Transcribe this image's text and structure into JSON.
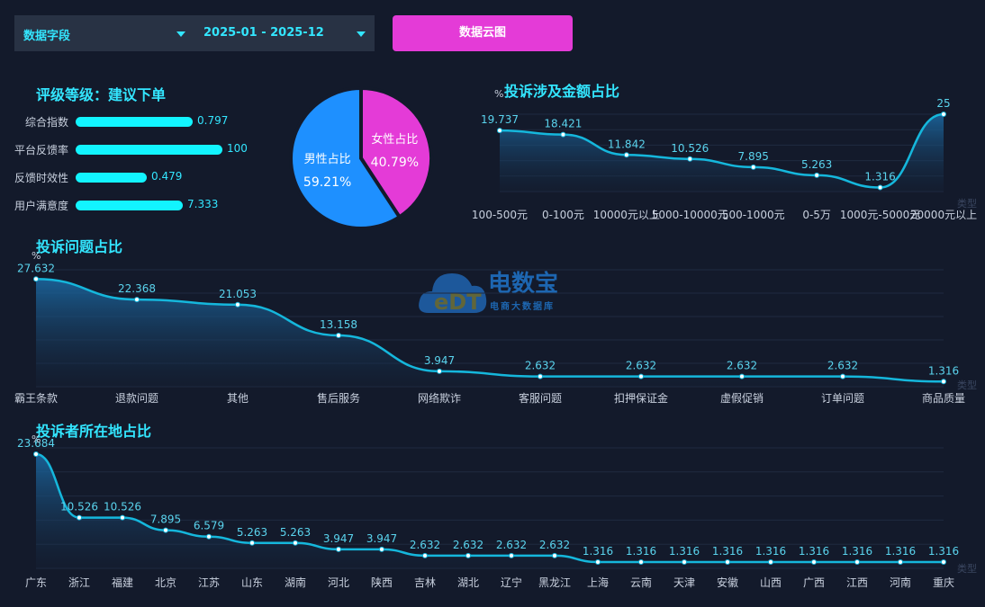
{
  "toolbar": {
    "field_select": "数据字段",
    "date_range": "2025-01 - 2025-12",
    "cloud_button": "数据云图"
  },
  "rating": {
    "title": "评级等级：建议下单",
    "items": [
      {
        "label": "综合指数",
        "value": "0.797",
        "fill": 0.59
      },
      {
        "label": "平台反馈率",
        "value": "100",
        "fill": 0.74
      },
      {
        "label": "反馈时效性",
        "value": "0.479",
        "fill": 0.36
      },
      {
        "label": "用户满意度",
        "value": "7.333",
        "fill": 0.54
      }
    ]
  },
  "watermark": {
    "logo_text": "eDT",
    "brand": "电数宝",
    "tagline": "电商大数据库"
  },
  "chart_data": [
    {
      "type": "pie",
      "slices": [
        {
          "name": "女性占比",
          "value": 40.79,
          "label": "40.79%",
          "color": "#e43bd7"
        },
        {
          "name": "男性占比",
          "value": 59.21,
          "label": "59.21%",
          "color": "#1e90ff"
        }
      ]
    },
    {
      "type": "area",
      "title": "投诉涉及金额占比",
      "ylabel": "%",
      "xlabel": "类型",
      "categories": [
        "100-500元",
        "0-100元",
        "10000元以上",
        "5000-10000元",
        "500-1000元",
        "0-5万",
        "1000元-5000元",
        "20000元以上"
      ],
      "values": [
        19.737,
        18.421,
        11.842,
        10.526,
        7.895,
        5.263,
        1.316,
        25
      ],
      "labels": [
        "19.737",
        "18.421",
        "11.842",
        "10.526",
        "7.895",
        "5.263",
        "1.316",
        "25"
      ],
      "ylim": [
        0,
        25
      ]
    },
    {
      "type": "area",
      "title": "投诉问题占比",
      "ylabel": "%",
      "xlabel": "类型",
      "categories": [
        "霸王条款",
        "退款问题",
        "其他",
        "售后服务",
        "网络欺诈",
        "客服问题",
        "扣押保证金",
        "虚假促销",
        "订单问题",
        "商品质量"
      ],
      "values": [
        27.632,
        22.368,
        21.053,
        13.158,
        3.947,
        2.632,
        2.632,
        2.632,
        2.632,
        1.316
      ],
      "labels": [
        "27.632",
        "22.368",
        "21.053",
        "13.158",
        "3.947",
        "2.632",
        "2.632",
        "2.632",
        "2.632",
        "1.316"
      ],
      "ylim": [
        0,
        30
      ]
    },
    {
      "type": "area",
      "title": "投诉者所在地占比",
      "ylabel": "%",
      "xlabel": "类型",
      "categories": [
        "广东",
        "浙江",
        "福建",
        "北京",
        "江苏",
        "山东",
        "湖南",
        "河北",
        "陕西",
        "吉林",
        "湖北",
        "辽宁",
        "黑龙江",
        "上海",
        "云南",
        "天津",
        "安徽",
        "山西",
        "广西",
        "江西",
        "河南",
        "重庆"
      ],
      "values": [
        23.684,
        10.526,
        10.526,
        7.895,
        6.579,
        5.263,
        5.263,
        3.947,
        3.947,
        2.632,
        2.632,
        2.632,
        2.632,
        1.316,
        1.316,
        1.316,
        1.316,
        1.316,
        1.316,
        1.316,
        1.316,
        1.316
      ],
      "labels": [
        "23.684",
        "10.526",
        "10.526",
        "7.895",
        "6.579",
        "5.263",
        "5.263",
        "3.947",
        "3.947",
        "2.632",
        "2.632",
        "2.632",
        "2.632",
        "1.316",
        "1.316",
        "1.316",
        "1.316",
        "1.316",
        "1.316",
        "1.316",
        "1.316",
        "1.316"
      ],
      "ylim": [
        0,
        25
      ]
    }
  ]
}
